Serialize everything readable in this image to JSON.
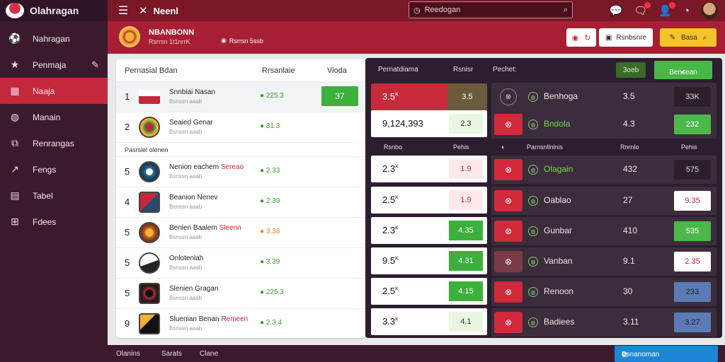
{
  "app": {
    "title": "Olahragan"
  },
  "sidebar": {
    "items": [
      {
        "label": "Nahragan",
        "icon": "soccer-ball-icon"
      },
      {
        "label": "Penmaja",
        "icon": "star-icon",
        "extra": "✎"
      },
      {
        "label": "Naaja",
        "icon": "dashboard-icon"
      },
      {
        "label": "Manain",
        "icon": "ball-icon"
      },
      {
        "label": "Renrangas",
        "icon": "puzzle-icon"
      },
      {
        "label": "Fengs",
        "icon": "chart-icon"
      },
      {
        "label": "Tabel",
        "icon": "calendar-icon"
      },
      {
        "label": "Fdees",
        "icon": "cart-icon"
      }
    ]
  },
  "topbar": {
    "title": "Neenl",
    "search_placeholder": "Reedogan"
  },
  "header": {
    "title": "NBANBONN",
    "subtitle": "Rsrrsn 1t1nrrK",
    "status": "Rsrrsn 5ssb"
  },
  "header_buttons": {
    "white_label": "Rsnbsnre",
    "yellow_label": "Basa"
  },
  "leftpanel": {
    "headers": {
      "col1": "Pernasial Bdan",
      "col2": "Rrsanlaie",
      "col3": "Vioda"
    },
    "section_label": "Pasrslel olenen",
    "rows": [
      {
        "rank": "1",
        "name": "Snnbiai Nasan",
        "sub": "Bsnssn aaab",
        "odd": "● 225.3",
        "value": "37"
      },
      {
        "rank": "2",
        "name": "Seaied Genar",
        "sub": "Bsnssn aaab",
        "odd": "● 31.3",
        "value": ""
      },
      {
        "rank": "5",
        "name": "Nenion eachem",
        "name_red": "Sereao",
        "sub": "Bsnssn aaab",
        "odd": "● 2.33",
        "value": ""
      },
      {
        "rank": "4",
        "name": "Beanion Nenev",
        "sub": "Bsnssn aaab",
        "odd": "● 2.39",
        "value": ""
      },
      {
        "rank": "5",
        "name": "Benlen Baalem",
        "name_red": "Sleenn",
        "sub": "Bsnssn aaab",
        "odd": "● 3.38",
        "value": ""
      },
      {
        "rank": "5",
        "name": "Onlotenlah",
        "sub": "Bsnssn aaab",
        "odd": "● 3.39",
        "value": ""
      },
      {
        "rank": "5",
        "name": "Slenien Gragan",
        "sub": "Bsnssn aaab",
        "odd": "● 225.3",
        "value": ""
      },
      {
        "rank": "9",
        "name": "Sluenian Benan",
        "name_red": "Remeen",
        "sub": "Bsnssn aaab",
        "odd": "● 2.3.4",
        "value": ""
      }
    ]
  },
  "rightpanel": {
    "headers": {
      "col1": "Pernatdiama",
      "col2": "Rsnisr",
      "col3": "Pechet:"
    },
    "ghost_button": "3oeb",
    "green_button": "Bensean",
    "sub_headers": {
      "a": "Rsnbo",
      "b": "Pehis",
      "c": "Parnsnllnlnis",
      "d": "Rnrnlo",
      "e": "Pehis"
    },
    "score_boxes": [
      {
        "value": "3.5",
        "sup": "K",
        "odd": "3.5"
      },
      {
        "value": "9,124,393",
        "sup": "",
        "odd": "2.3"
      },
      {
        "value": "2.3",
        "sup": "K",
        "odd": "1.9"
      },
      {
        "value": "2.5",
        "sup": "K",
        "odd": "1.9"
      },
      {
        "value": "2.3",
        "sup": "K",
        "odd": "4.35"
      },
      {
        "value": "9.5",
        "sup": "K",
        "odd": "4.31"
      },
      {
        "value": "2.5",
        "sup": "K",
        "odd": "4.15"
      },
      {
        "value": "3.3",
        "sup": "K",
        "odd": "4.1"
      }
    ],
    "matches": [
      {
        "icon": "⊗",
        "name": "Benhoga",
        "value": "3.5",
        "bet": "33K"
      },
      {
        "icon": "⊗",
        "name": "Bndola",
        "value": "4.3",
        "bet": "232"
      },
      {
        "icon": "⊗",
        "name": "Olagain",
        "value": "432",
        "bet": "575"
      },
      {
        "icon": "⊗",
        "name": "Oablao",
        "value": "27",
        "bet": "9.35"
      },
      {
        "icon": "⊗",
        "name": "Gunbar",
        "value": "410",
        "bet": "535"
      },
      {
        "icon": "⊗",
        "name": "Vanban",
        "value": "9.1",
        "bet": "2.35"
      },
      {
        "icon": "⊗",
        "name": "Renoon",
        "value": "30",
        "bet": "233"
      },
      {
        "icon": "⊗",
        "name": "Badiees",
        "value": "3.11",
        "bet": "3.27"
      }
    ]
  },
  "bottombar": {
    "items": [
      "Olanins",
      "Sarats",
      "Clane"
    ],
    "blue_button": "Bsnanoman"
  }
}
